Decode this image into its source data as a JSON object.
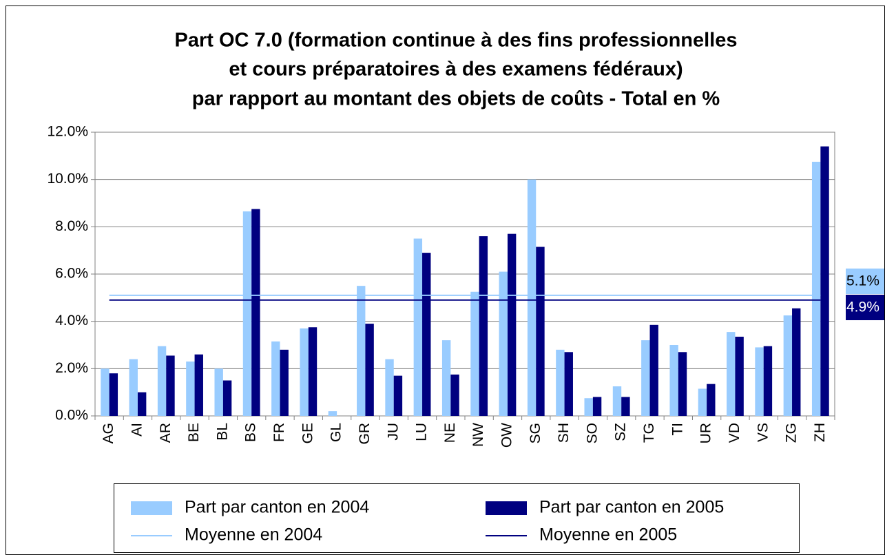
{
  "chart_data": {
    "type": "bar",
    "title": [
      "Part OC 7.0 (formation continue à des fins professionnelles",
      "et cours préparatoires à des examens fédéraux)",
      "par rapport au montant des objets de coûts - Total en %"
    ],
    "categories": [
      "AG",
      "AI",
      "AR",
      "BE",
      "BL",
      "BS",
      "FR",
      "GE",
      "GL",
      "GR",
      "JU",
      "LU",
      "NE",
      "NW",
      "OW",
      "SG",
      "SH",
      "SO",
      "SZ",
      "TG",
      "TI",
      "UR",
      "VD",
      "VS",
      "ZG",
      "ZH"
    ],
    "series": [
      {
        "name": "Part par canton en 2004",
        "color": "#99ccff",
        "values": [
          2.0,
          2.4,
          2.95,
          2.3,
          2.0,
          8.65,
          3.15,
          3.7,
          0.2,
          5.5,
          2.4,
          7.5,
          3.2,
          5.25,
          6.1,
          10.0,
          2.8,
          0.75,
          1.25,
          3.2,
          3.0,
          1.15,
          3.55,
          2.9,
          4.25,
          10.75
        ]
      },
      {
        "name": "Part par canton en 2005",
        "color": "#000080",
        "values": [
          1.8,
          1.0,
          2.55,
          2.6,
          1.5,
          8.75,
          2.8,
          3.75,
          0,
          3.9,
          1.7,
          6.9,
          1.75,
          7.6,
          7.7,
          7.15,
          2.7,
          0.8,
          0.8,
          3.85,
          2.7,
          1.35,
          3.35,
          2.95,
          4.55,
          11.4
        ]
      }
    ],
    "lines": [
      {
        "name": "Moyenne en 2004",
        "color": "#99ccff",
        "value": 5.1,
        "value_label": "5.1%"
      },
      {
        "name": "Moyenne en 2005",
        "color": "#000080",
        "value": 4.9,
        "value_label": "4.9%"
      }
    ],
    "ylim": [
      0,
      12
    ],
    "yticks": [
      {
        "value": 0,
        "label": "0.0%"
      },
      {
        "value": 2,
        "label": "2.0%"
      },
      {
        "value": 4,
        "label": "4.0%"
      },
      {
        "value": 6,
        "label": "6.0%"
      },
      {
        "value": 8,
        "label": "8.0%"
      },
      {
        "value": 10,
        "label": "10.0%"
      },
      {
        "value": 12,
        "label": "12.0%"
      }
    ],
    "grid": true
  }
}
